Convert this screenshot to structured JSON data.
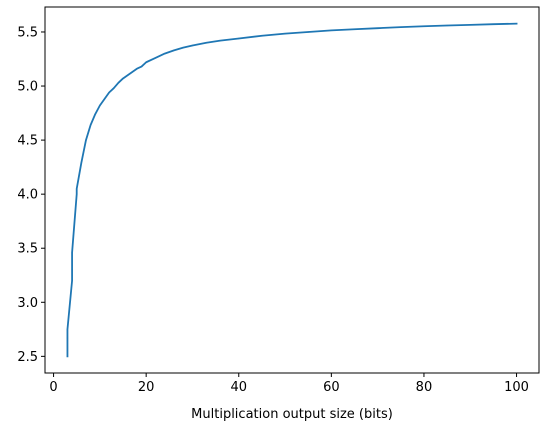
{
  "chart_data": {
    "type": "line",
    "title": "",
    "xlabel": "Multiplication output size (bits)",
    "ylabel": "",
    "xlim": [
      -1.85,
      104.85
    ],
    "ylim": [
      2.346,
      5.731
    ],
    "xticks": [
      0,
      20,
      40,
      60,
      80,
      100
    ],
    "xtick_labels": [
      "0",
      "20",
      "40",
      "60",
      "80",
      "100"
    ],
    "yticks": [
      2.5,
      3.0,
      3.5,
      4.0,
      4.5,
      5.0,
      5.5
    ],
    "ytick_labels": [
      "2.5",
      "3.0",
      "3.5",
      "4.0",
      "4.5",
      "5.0",
      "5.5"
    ],
    "grid": false,
    "legend": false,
    "line_color": "#1f77b4",
    "series": [
      {
        "x": [
          3,
          3,
          3,
          4,
          4,
          4,
          5,
          5,
          6,
          7,
          8,
          9,
          10,
          11,
          12,
          13,
          14,
          15,
          16,
          17,
          18,
          19,
          20,
          22,
          24,
          26,
          28,
          30,
          33,
          36,
          40,
          45,
          50,
          55,
          60,
          65,
          70,
          75,
          80,
          85,
          90,
          95,
          100
        ],
        "y": [
          2.5,
          2.67,
          2.75,
          3.2,
          3.3,
          3.46,
          4.0,
          4.05,
          4.29,
          4.5,
          4.64,
          4.74,
          4.82,
          4.88,
          4.94,
          4.98,
          5.03,
          5.07,
          5.1,
          5.13,
          5.16,
          5.18,
          5.22,
          5.26,
          5.3,
          5.33,
          5.355,
          5.375,
          5.4,
          5.42,
          5.44,
          5.465,
          5.485,
          5.5,
          5.515,
          5.525,
          5.535,
          5.545,
          5.553,
          5.56,
          5.566,
          5.572,
          5.577
        ]
      }
    ]
  }
}
